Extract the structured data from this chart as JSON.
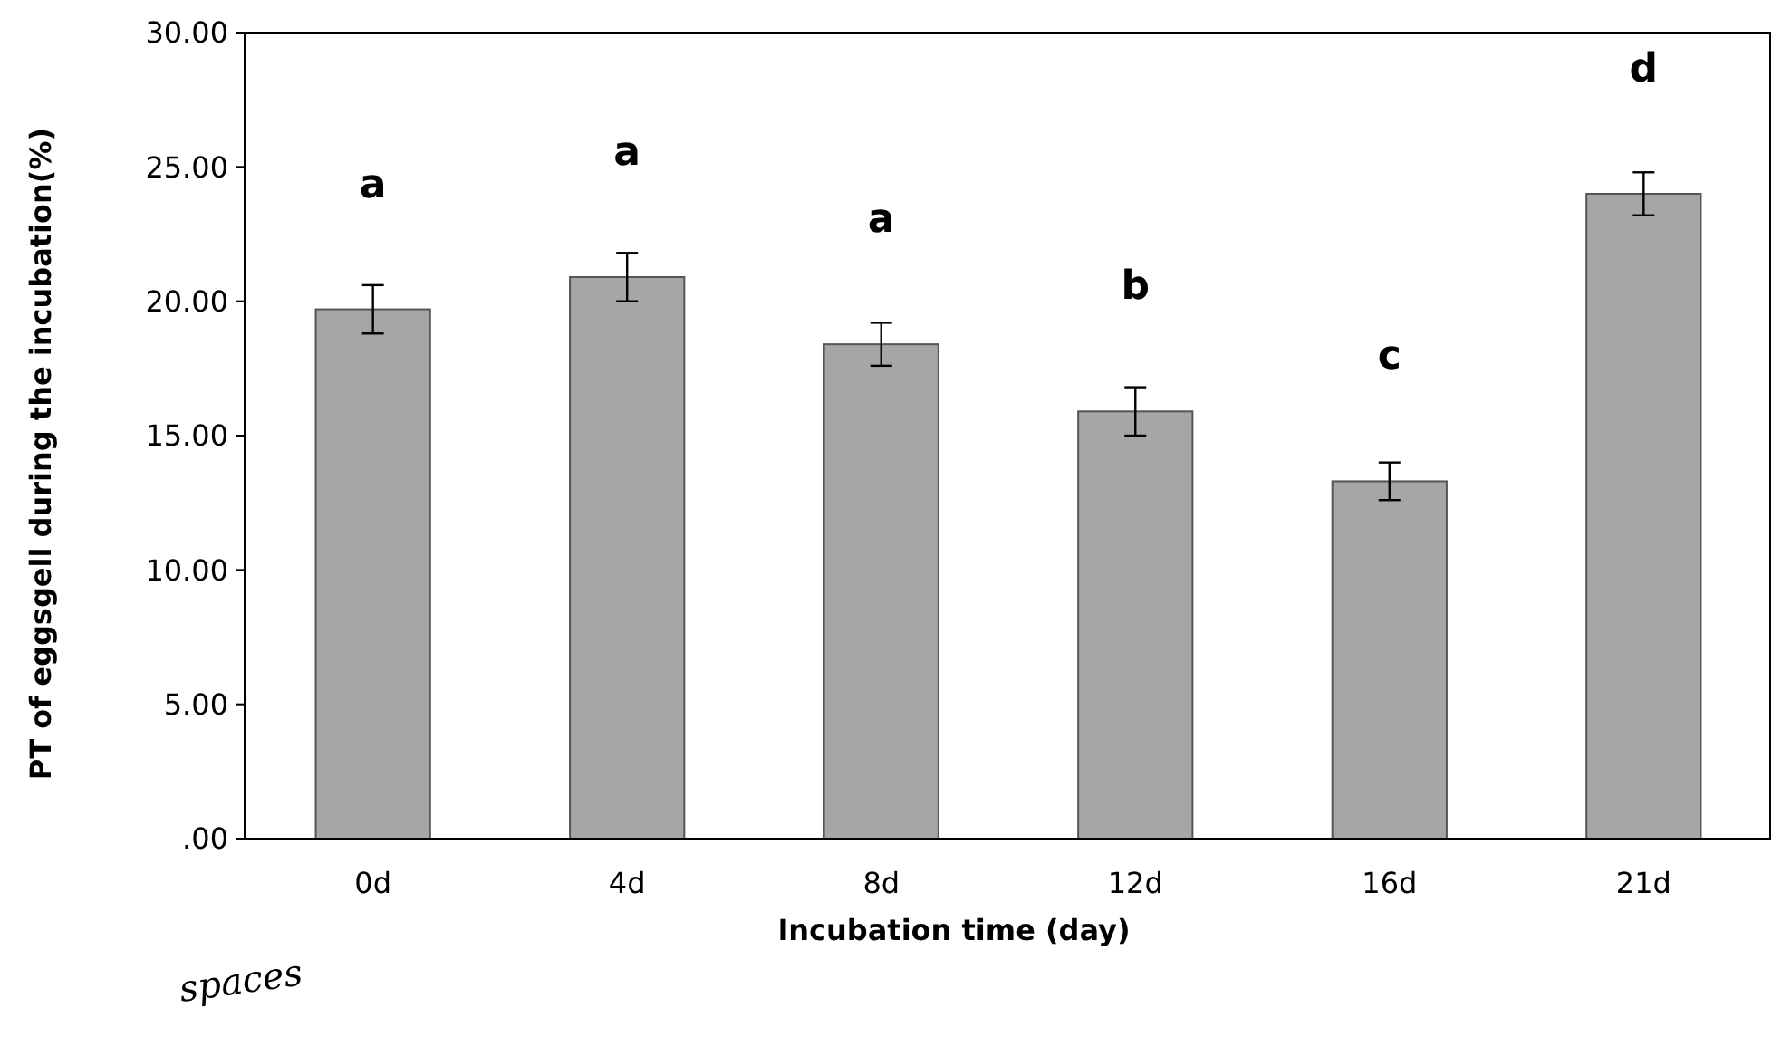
{
  "chart_data": {
    "type": "bar",
    "xlabel": "Incubation time (day)",
    "ylabel": "PT of eggsgell during the  incubation(%)",
    "categories": [
      "0d",
      "4d",
      "8d",
      "12d",
      "16d",
      "21d"
    ],
    "values": [
      19.7,
      20.9,
      18.4,
      15.9,
      13.3,
      24.0
    ],
    "errors": [
      0.9,
      0.9,
      0.8,
      0.9,
      0.7,
      0.8
    ],
    "color": "#a6a6a6",
    "ylim": [
      0,
      30
    ],
    "yticks": [
      {
        "value": 0,
        "label": ".00"
      },
      {
        "value": 5,
        "label": "5.00"
      },
      {
        "value": 10,
        "label": "10.00"
      },
      {
        "value": 15,
        "label": "15.00"
      },
      {
        "value": 20,
        "label": "20.00"
      },
      {
        "value": 25,
        "label": "25.00"
      },
      {
        "value": 30,
        "label": "30.00"
      }
    ],
    "grid": false,
    "annotations": [
      "a",
      "a",
      "a",
      "b",
      "c",
      "d",
      "spaces"
    ]
  }
}
